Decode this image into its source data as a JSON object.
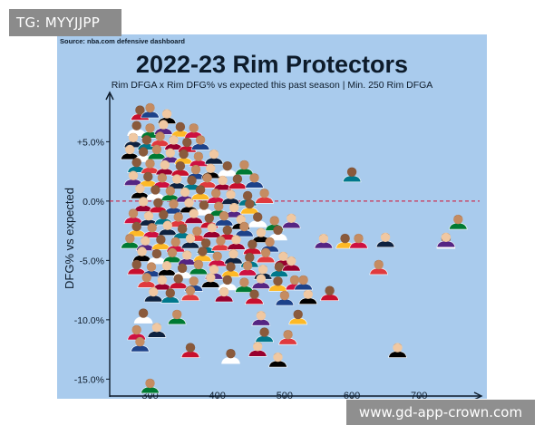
{
  "watermarks": {
    "top_left": "TG: MYYJJPP",
    "bottom_right": "www.gd-app-crown.com"
  },
  "colors": {
    "background": "#a9cbed",
    "reference_line": "#cc3355",
    "text": "#0d1b2a",
    "jerseys": [
      "#c8102e",
      "#1d428a",
      "#000000",
      "#ffffff",
      "#007a33",
      "#552583",
      "#fdb927",
      "#ce1141",
      "#0e2240",
      "#00788c",
      "#e03a3e",
      "#98002e"
    ]
  },
  "chart_data": {
    "type": "scatter",
    "source": "Source: nba.com defensive dashboard",
    "title": "2022-23 Rim Protectors",
    "subtitle": "Rim DFGA x Rim DFG% vs expected this past season | Min. 250 Rim DFGA",
    "xlabel": "",
    "ylabel": "DFG% vs expected",
    "xlim": [
      240,
      790
    ],
    "ylim": [
      -16.5,
      9
    ],
    "x_ticks": [
      300,
      400,
      500,
      600,
      700
    ],
    "y_ticks": [
      5,
      0,
      -5,
      -10,
      -15
    ],
    "y_tick_labels": [
      "+5.0%",
      "0.0%",
      "-5.0%",
      "-10.0%",
      "-15.0%"
    ],
    "reference_line": {
      "y": 0,
      "style": "dashed",
      "color": "#cc3355"
    },
    "markers": "player headshots",
    "points": [
      [
        285,
        7.5
      ],
      [
        300,
        7.7
      ],
      [
        325,
        7.2
      ],
      [
        280,
        6.2
      ],
      [
        300,
        6.0
      ],
      [
        320,
        6.3
      ],
      [
        345,
        6.1
      ],
      [
        365,
        6.0
      ],
      [
        275,
        5.2
      ],
      [
        295,
        5.0
      ],
      [
        315,
        5.3
      ],
      [
        335,
        5.0
      ],
      [
        355,
        4.8
      ],
      [
        375,
        5.0
      ],
      [
        270,
        4.2
      ],
      [
        290,
        4.0
      ],
      [
        310,
        4.2
      ],
      [
        330,
        3.9
      ],
      [
        350,
        3.8
      ],
      [
        372,
        3.6
      ],
      [
        395,
        3.8
      ],
      [
        280,
        3.1
      ],
      [
        300,
        3.0
      ],
      [
        322,
        2.9
      ],
      [
        345,
        2.8
      ],
      [
        368,
        2.5
      ],
      [
        390,
        2.6
      ],
      [
        415,
        2.8
      ],
      [
        440,
        2.9
      ],
      [
        275,
        2.0
      ],
      [
        297,
        1.9
      ],
      [
        318,
        1.8
      ],
      [
        340,
        1.7
      ],
      [
        362,
        1.6
      ],
      [
        385,
        1.8
      ],
      [
        408,
        1.6
      ],
      [
        430,
        1.7
      ],
      [
        455,
        1.8
      ],
      [
        285,
        0.9
      ],
      [
        308,
        0.8
      ],
      [
        330,
        0.7
      ],
      [
        352,
        0.6
      ],
      [
        375,
        0.8
      ],
      [
        398,
        0.5
      ],
      [
        420,
        0.4
      ],
      [
        445,
        0.3
      ],
      [
        470,
        0.5
      ],
      [
        290,
        -0.2
      ],
      [
        312,
        -0.3
      ],
      [
        335,
        -0.4
      ],
      [
        358,
        -0.3
      ],
      [
        380,
        -0.5
      ],
      [
        402,
        -0.6
      ],
      [
        425,
        -0.7
      ],
      [
        448,
        -0.4
      ],
      [
        275,
        -1.2
      ],
      [
        298,
        -1.4
      ],
      [
        320,
        -1.3
      ],
      [
        342,
        -1.5
      ],
      [
        365,
        -1.2
      ],
      [
        388,
        -1.6
      ],
      [
        410,
        -1.4
      ],
      [
        435,
        -1.7
      ],
      [
        460,
        -1.5
      ],
      [
        485,
        -1.8
      ],
      [
        510,
        -1.6
      ],
      [
        280,
        -2.3
      ],
      [
        303,
        -2.4
      ],
      [
        326,
        -2.2
      ],
      [
        348,
        -2.5
      ],
      [
        370,
        -2.7
      ],
      [
        392,
        -2.4
      ],
      [
        415,
        -2.6
      ],
      [
        440,
        -2.3
      ],
      [
        465,
        -2.8
      ],
      [
        490,
        -2.6
      ],
      [
        270,
        -3.3
      ],
      [
        293,
        -3.5
      ],
      [
        316,
        -3.4
      ],
      [
        338,
        -3.6
      ],
      [
        360,
        -3.3
      ],
      [
        383,
        -3.7
      ],
      [
        405,
        -3.5
      ],
      [
        428,
        -3.4
      ],
      [
        452,
        -3.8
      ],
      [
        478,
        -3.6
      ],
      [
        288,
        -4.4
      ],
      [
        310,
        -4.6
      ],
      [
        333,
        -4.5
      ],
      [
        355,
        -4.7
      ],
      [
        378,
        -4.4
      ],
      [
        400,
        -4.8
      ],
      [
        424,
        -4.6
      ],
      [
        448,
        -4.9
      ],
      [
        472,
        -4.5
      ],
      [
        498,
        -4.8
      ],
      [
        280,
        -5.5
      ],
      [
        302,
        -5.7
      ],
      [
        325,
        -5.6
      ],
      [
        348,
        -5.8
      ],
      [
        372,
        -5.5
      ],
      [
        395,
        -5.9
      ],
      [
        420,
        -5.7
      ],
      [
        445,
        -5.6
      ],
      [
        468,
        -5.9
      ],
      [
        492,
        -5.7
      ],
      [
        295,
        -6.6
      ],
      [
        318,
        -6.8
      ],
      [
        342,
        -6.7
      ],
      [
        365,
        -6.9
      ],
      [
        390,
        -6.6
      ],
      [
        415,
        -6.8
      ],
      [
        440,
        -7.0
      ],
      [
        465,
        -6.7
      ],
      [
        490,
        -6.9
      ],
      [
        515,
        -6.8
      ],
      [
        305,
        -7.8
      ],
      [
        330,
        -7.9
      ],
      [
        360,
        -7.7
      ],
      [
        410,
        -7.8
      ],
      [
        455,
        -8.0
      ],
      [
        500,
        -8.1
      ],
      [
        535,
        -8.0
      ],
      [
        290,
        -9.6
      ],
      [
        340,
        -9.7
      ],
      [
        465,
        -9.8
      ],
      [
        520,
        -9.7
      ],
      [
        280,
        -11.0
      ],
      [
        310,
        -10.8
      ],
      [
        470,
        -11.2
      ],
      [
        505,
        -11.4
      ],
      [
        460,
        -12.4
      ],
      [
        360,
        -12.5
      ],
      [
        285,
        -12.0
      ],
      [
        490,
        -13.3
      ],
      [
        420,
        -13.0
      ],
      [
        300,
        -15.5
      ],
      [
        558,
        -3.3
      ],
      [
        590,
        -3.3
      ],
      [
        610,
        -3.3
      ],
      [
        650,
        -3.2
      ],
      [
        600,
        2.3
      ],
      [
        640,
        -5.5
      ],
      [
        510,
        -5.2
      ],
      [
        567,
        -7.7
      ],
      [
        528,
        -6.8
      ],
      [
        668,
        -12.5
      ],
      [
        740,
        -3.3
      ],
      [
        758,
        -1.7
      ],
      [
        740,
        -3.2
      ]
    ]
  }
}
